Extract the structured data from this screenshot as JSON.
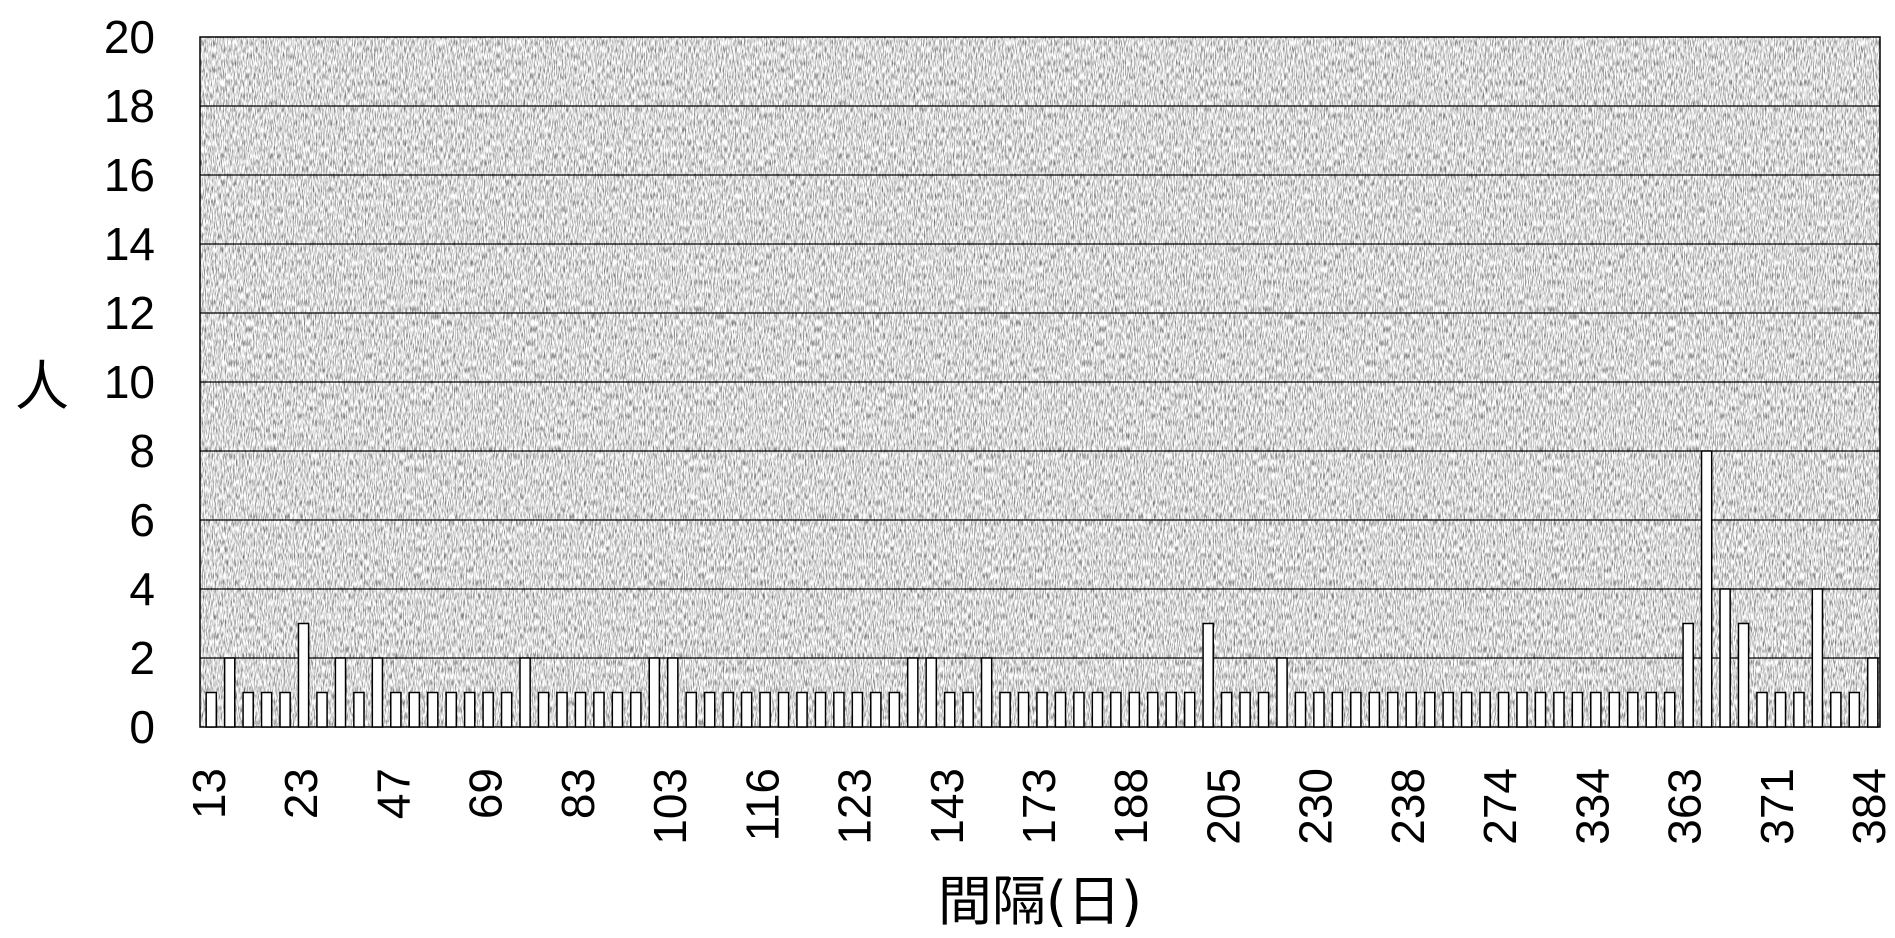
{
  "chart_data": {
    "type": "bar",
    "xlabel": "間隔(日)",
    "ylabel": "人",
    "ylim": [
      0,
      20
    ],
    "yticks": [
      0,
      2,
      4,
      6,
      8,
      10,
      12,
      14,
      16,
      18,
      20
    ],
    "grid": true,
    "background": "stippled gray",
    "bar_fill": "#ffffff",
    "bar_stroke": "#000000",
    "x_tick_labels": [
      "13",
      "23",
      "47",
      "69",
      "83",
      "103",
      "116",
      "123",
      "143",
      "173",
      "188",
      "205",
      "230",
      "238",
      "274",
      "334",
      "363",
      "371",
      "384"
    ],
    "values": [
      1,
      2,
      1,
      1,
      1,
      3,
      1,
      2,
      1,
      2,
      1,
      1,
      1,
      1,
      1,
      1,
      1,
      2,
      1,
      1,
      1,
      1,
      1,
      1,
      2,
      2,
      1,
      1,
      1,
      1,
      1,
      1,
      1,
      1,
      1,
      1,
      1,
      1,
      2,
      2,
      1,
      1,
      2,
      1,
      1,
      1,
      1,
      1,
      1,
      1,
      1,
      1,
      1,
      1,
      3,
      1,
      1,
      1,
      2,
      1,
      1,
      1,
      1,
      1,
      1,
      1,
      1,
      1,
      1,
      1,
      1,
      1,
      1,
      1,
      1,
      1,
      1,
      1,
      1,
      1,
      3,
      8,
      4,
      3,
      1,
      1,
      1,
      4,
      1,
      1,
      2
    ]
  }
}
